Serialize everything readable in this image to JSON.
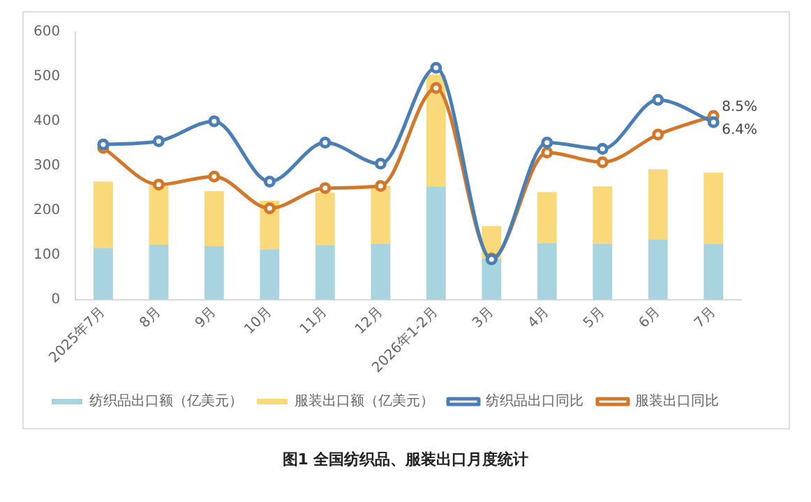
{
  "chart_data": {
    "type": "bar",
    "title": "图1  全国纺织品、服装出口月度统计",
    "categories": [
      "2025年7月",
      "8月",
      "9月",
      "10月",
      "11月",
      "12月",
      "2026年1-2月",
      "3月",
      "4月",
      "5月",
      "6月",
      "7月"
    ],
    "stacked": true,
    "series": [
      {
        "name": "纺织品出口额（亿美元）",
        "color": "#a8d4e0",
        "values": [
          115,
          123,
          120,
          112,
          122,
          125,
          254,
          92,
          127,
          125,
          135,
          125
        ]
      },
      {
        "name": "服装出口额（亿美元）",
        "color": "#f9d97a",
        "values": [
          150,
          132,
          123,
          110,
          118,
          130,
          251,
          73,
          114,
          129,
          157,
          160
        ]
      },
      {
        "name": "纺织品出口同比",
        "type": "line",
        "axis": "y2",
        "color": "#4a7fb5",
        "values": [
          -1.1,
          0,
          6.7,
          -13.6,
          -0.5,
          -7.6,
          24.7,
          -39.8,
          -0.5,
          -2.6,
          13.9,
          6.4
        ],
        "value_labels": [
          null,
          null,
          null,
          null,
          null,
          null,
          null,
          null,
          null,
          null,
          null,
          "6.4%"
        ]
      },
      {
        "name": "服装出口同比",
        "type": "line",
        "axis": "y2",
        "color": "#d2782a",
        "values": [
          -2.3,
          -14.6,
          -11.9,
          -22.6,
          -15.8,
          -15.1,
          17.9,
          -39.5,
          -3.8,
          -7.1,
          2.2,
          8.5
        ],
        "value_labels": [
          null,
          null,
          null,
          null,
          null,
          null,
          null,
          null,
          null,
          null,
          null,
          "8.5%"
        ]
      }
    ],
    "ylim": [
      0,
      600
    ],
    "yticks": [
      0,
      100,
      200,
      300,
      400,
      500,
      600
    ],
    "y2lim": [
      -53.3,
      36.7
    ],
    "tick_labels": "xy",
    "marker": "circle",
    "grid": false,
    "legend": "bottom"
  }
}
